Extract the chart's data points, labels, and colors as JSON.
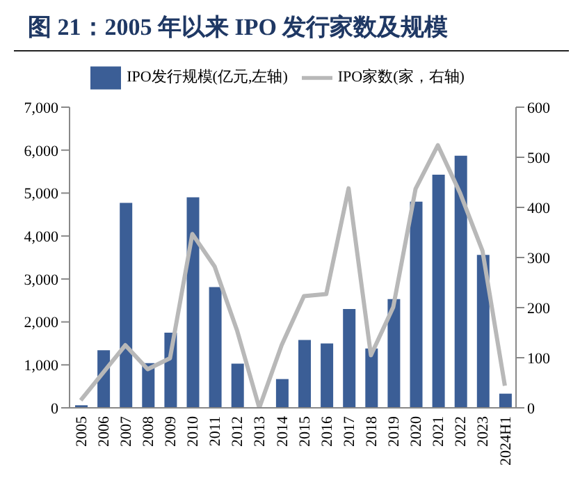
{
  "chart_data": {
    "type": "bar",
    "title": "图 21：2005 年以来 IPO 发行家数及规模",
    "categories": [
      "2005",
      "2006",
      "2007",
      "2008",
      "2009",
      "2010",
      "2011",
      "2012",
      "2013",
      "2014",
      "2015",
      "2016",
      "2017",
      "2018",
      "2019",
      "2020",
      "2021",
      "2022",
      "2023",
      "2024H1"
    ],
    "series": [
      {
        "name": "IPO发行规模(亿元,左轴)",
        "color": "#3b5e96",
        "values": [
          60,
          1340,
          4770,
          1040,
          1750,
          4900,
          2810,
          1030,
          0,
          670,
          1580,
          1500,
          2300,
          1380,
          2530,
          4800,
          5430,
          5870,
          3560,
          330
        ]
      },
      {
        "name": "IPO家数(家，右轴)",
        "type": "line",
        "axis": "y2",
        "color": "#b8b8b8",
        "values": [
          15,
          70,
          125,
          77,
          99,
          347,
          282,
          155,
          0,
          125,
          223,
          227,
          438,
          105,
          201,
          437,
          524,
          428,
          313,
          44
        ]
      }
    ],
    "ylim": [
      0,
      7000
    ],
    "yticks": [
      0,
      {
        "value": 1000,
        "label": "1,000"
      },
      {
        "value": 2000,
        "label": "2,000"
      },
      {
        "value": 3000,
        "label": "3,000"
      },
      {
        "value": 4000,
        "label": "4,000"
      },
      {
        "value": 5000,
        "label": "5,000"
      },
      {
        "value": 6000,
        "label": "6,000"
      },
      {
        "value": 7000,
        "label": "7,000"
      }
    ],
    "y2lim": [
      0,
      600
    ],
    "y2ticks": [
      0,
      100,
      200,
      300,
      400,
      500,
      600
    ],
    "grid": false,
    "legend": "top",
    "marker": "none"
  }
}
